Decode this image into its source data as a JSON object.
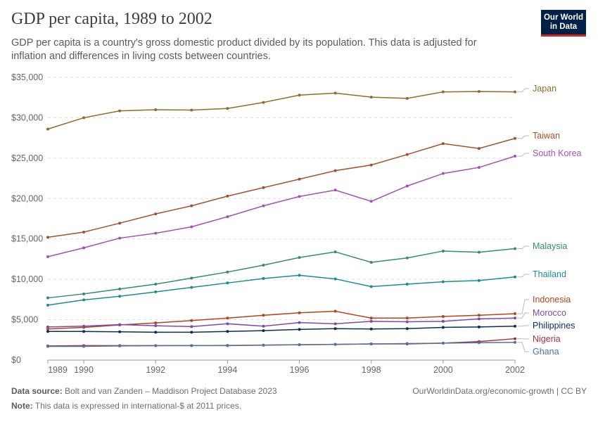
{
  "title": "GDP per capita, 1989 to 2002",
  "subtitle": "GDP per capita is a country's gross domestic product divided by its population. This data is adjusted for inflation and differences in living costs between countries.",
  "logo": {
    "line1": "Our World",
    "line2": "in Data"
  },
  "footer": {
    "source_label": "Data source:",
    "source_text": "Bolt and van Zanden – Maddison Project Database 2023",
    "note_label": "Note:",
    "note_text": "This data is expressed in international-$ at 2011 prices.",
    "url_text": "OurWorldinData.org/economic-growth | CC BY"
  },
  "chart_data": {
    "type": "line",
    "title": "GDP per capita, 1989 to 2002",
    "x": [
      1989,
      1990,
      1991,
      1992,
      1993,
      1994,
      1995,
      1996,
      1997,
      1998,
      1999,
      2000,
      2001,
      2002
    ],
    "xticks": [
      "1989",
      "1990",
      "1992",
      "1994",
      "1996",
      "1998",
      "2000",
      "2002"
    ],
    "xtick_values": [
      1989,
      1990,
      1992,
      1994,
      1996,
      1998,
      2000,
      2002
    ],
    "yticks": [
      "$35,000",
      "$30,000",
      "$25,000",
      "$20,000",
      "$15,000",
      "$10,000",
      "$5,000",
      "$0"
    ],
    "ytick_values": [
      35000,
      30000,
      25000,
      20000,
      15000,
      10000,
      5000,
      0
    ],
    "xlim": [
      1989,
      2002
    ],
    "ylim": [
      0,
      35000
    ],
    "grid": "horizontal dashed",
    "legend": "right, labels at line ends",
    "series": [
      {
        "name": "Japan",
        "color": "#8c6d2c",
        "values": [
          28600,
          30000,
          30850,
          31000,
          30950,
          31150,
          31900,
          32800,
          33050,
          32550,
          32400,
          33200,
          33250,
          33200
        ]
      },
      {
        "name": "Taiwan",
        "color": "#a2522b",
        "values": [
          15200,
          15850,
          16950,
          18100,
          19100,
          20300,
          21350,
          22400,
          23450,
          24150,
          25450,
          26800,
          26200,
          27450
        ]
      },
      {
        "name": "South Korea",
        "color": "#a550b5",
        "values": [
          12800,
          13900,
          15100,
          15700,
          16500,
          17750,
          19100,
          20250,
          21050,
          19650,
          21550,
          23100,
          23850,
          25250
        ]
      },
      {
        "name": "Malaysia",
        "color": "#348a75",
        "values": [
          7700,
          8200,
          8800,
          9400,
          10150,
          10900,
          11750,
          12700,
          13400,
          12100,
          12650,
          13500,
          13350,
          13800
        ]
      },
      {
        "name": "Thailand",
        "color": "#1a8d91",
        "values": [
          6800,
          7450,
          7900,
          8450,
          9000,
          9550,
          10100,
          10500,
          10050,
          9100,
          9400,
          9700,
          9850,
          10300
        ]
      },
      {
        "name": "Indonesia",
        "color": "#b5441c",
        "values": [
          3850,
          4050,
          4350,
          4600,
          4900,
          5200,
          5550,
          5850,
          6050,
          5200,
          5200,
          5400,
          5550,
          5750
        ]
      },
      {
        "name": "Morocco",
        "color": "#7e4aa8",
        "values": [
          4100,
          4200,
          4400,
          4250,
          4150,
          4500,
          4200,
          4650,
          4500,
          4800,
          4750,
          4800,
          5100,
          5200
        ]
      },
      {
        "name": "Philippines",
        "color": "#0e2d56",
        "values": [
          3550,
          3550,
          3500,
          3450,
          3450,
          3550,
          3650,
          3800,
          3900,
          3850,
          3900,
          4050,
          4100,
          4200
        ]
      },
      {
        "name": "Nigeria",
        "color": "#a8323f",
        "values": [
          1750,
          1800,
          1800,
          1800,
          1800,
          1800,
          1850,
          1900,
          1950,
          2000,
          2000,
          2100,
          2300,
          2650
        ]
      },
      {
        "name": "Ghana",
        "color": "#51729c",
        "values": [
          1700,
          1700,
          1750,
          1780,
          1800,
          1820,
          1850,
          1900,
          1950,
          2000,
          2050,
          2100,
          2150,
          2200
        ]
      }
    ],
    "labels": [
      "Japan",
      "Taiwan",
      "South Korea",
      "Malaysia",
      "Thailand",
      "Indonesia",
      "Morocco",
      "Philippines",
      "Nigeria",
      "Ghana"
    ]
  }
}
